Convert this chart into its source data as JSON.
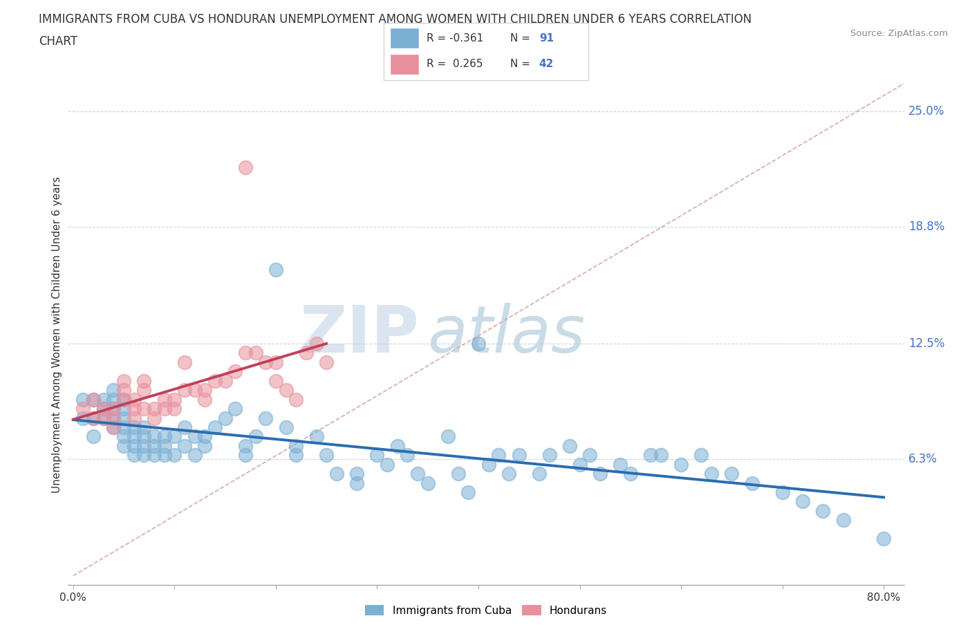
{
  "title_line1": "IMMIGRANTS FROM CUBA VS HONDURAN UNEMPLOYMENT AMONG WOMEN WITH CHILDREN UNDER 6 YEARS CORRELATION",
  "title_line2": "CHART",
  "source": "Source: ZipAtlas.com",
  "ylabel": "Unemployment Among Women with Children Under 6 years",
  "xlim": [
    -0.005,
    0.82
  ],
  "ylim": [
    -0.005,
    0.265
  ],
  "ytick_vals": [
    0.063,
    0.125,
    0.188,
    0.25
  ],
  "ytick_labels": [
    "6.3%",
    "12.5%",
    "18.8%",
    "25.0%"
  ],
  "xtick_show": [
    0.0,
    0.8
  ],
  "xtick_labels": [
    "0.0%",
    "80.0%"
  ],
  "cuba_color": "#7bafd4",
  "honduran_color": "#e8909e",
  "trend_cuba_color": "#2b6cb0",
  "trend_honduran_color": "#c0415a",
  "diagonal_color": "#d8a8a8",
  "watermark_zip": "ZIP",
  "watermark_atlas": "atlas",
  "legend_r_cuba": "-0.361",
  "legend_n_cuba": "91",
  "legend_r_honduras": "0.265",
  "legend_n_honduras": "42",
  "background_color": "#ffffff",
  "number_color": "#4472c4",
  "cuba_scatter_x": [
    0.01,
    0.01,
    0.02,
    0.02,
    0.02,
    0.03,
    0.03,
    0.03,
    0.04,
    0.04,
    0.04,
    0.04,
    0.04,
    0.05,
    0.05,
    0.05,
    0.05,
    0.05,
    0.05,
    0.06,
    0.06,
    0.06,
    0.06,
    0.07,
    0.07,
    0.07,
    0.07,
    0.08,
    0.08,
    0.08,
    0.09,
    0.09,
    0.09,
    0.1,
    0.1,
    0.11,
    0.11,
    0.12,
    0.12,
    0.13,
    0.13,
    0.14,
    0.15,
    0.16,
    0.17,
    0.17,
    0.18,
    0.19,
    0.2,
    0.21,
    0.22,
    0.22,
    0.24,
    0.25,
    0.26,
    0.28,
    0.28,
    0.3,
    0.31,
    0.32,
    0.33,
    0.34,
    0.35,
    0.37,
    0.38,
    0.39,
    0.4,
    0.41,
    0.42,
    0.43,
    0.44,
    0.46,
    0.47,
    0.49,
    0.5,
    0.51,
    0.52,
    0.54,
    0.55,
    0.57,
    0.58,
    0.6,
    0.62,
    0.63,
    0.65,
    0.67,
    0.7,
    0.72,
    0.74,
    0.76,
    0.8
  ],
  "cuba_scatter_y": [
    0.095,
    0.085,
    0.095,
    0.085,
    0.075,
    0.085,
    0.09,
    0.095,
    0.08,
    0.085,
    0.09,
    0.095,
    0.1,
    0.07,
    0.075,
    0.08,
    0.085,
    0.09,
    0.095,
    0.065,
    0.07,
    0.075,
    0.08,
    0.065,
    0.07,
    0.075,
    0.08,
    0.065,
    0.07,
    0.075,
    0.065,
    0.07,
    0.075,
    0.065,
    0.075,
    0.07,
    0.08,
    0.065,
    0.075,
    0.07,
    0.075,
    0.08,
    0.085,
    0.09,
    0.065,
    0.07,
    0.075,
    0.085,
    0.165,
    0.08,
    0.065,
    0.07,
    0.075,
    0.065,
    0.055,
    0.055,
    0.05,
    0.065,
    0.06,
    0.07,
    0.065,
    0.055,
    0.05,
    0.075,
    0.055,
    0.045,
    0.125,
    0.06,
    0.065,
    0.055,
    0.065,
    0.055,
    0.065,
    0.07,
    0.06,
    0.065,
    0.055,
    0.06,
    0.055,
    0.065,
    0.065,
    0.06,
    0.065,
    0.055,
    0.055,
    0.05,
    0.045,
    0.04,
    0.035,
    0.03,
    0.02
  ],
  "honduran_scatter_x": [
    0.01,
    0.02,
    0.02,
    0.03,
    0.03,
    0.04,
    0.04,
    0.04,
    0.05,
    0.05,
    0.05,
    0.06,
    0.06,
    0.06,
    0.07,
    0.07,
    0.07,
    0.08,
    0.08,
    0.09,
    0.09,
    0.1,
    0.1,
    0.11,
    0.11,
    0.12,
    0.13,
    0.13,
    0.14,
    0.15,
    0.16,
    0.17,
    0.17,
    0.18,
    0.19,
    0.2,
    0.2,
    0.21,
    0.22,
    0.23,
    0.24,
    0.25
  ],
  "honduran_scatter_y": [
    0.09,
    0.085,
    0.095,
    0.085,
    0.09,
    0.08,
    0.085,
    0.09,
    0.095,
    0.1,
    0.105,
    0.09,
    0.095,
    0.085,
    0.1,
    0.105,
    0.09,
    0.085,
    0.09,
    0.09,
    0.095,
    0.09,
    0.095,
    0.1,
    0.115,
    0.1,
    0.095,
    0.1,
    0.105,
    0.105,
    0.11,
    0.22,
    0.12,
    0.12,
    0.115,
    0.115,
    0.105,
    0.1,
    0.095,
    0.12,
    0.125,
    0.115
  ]
}
